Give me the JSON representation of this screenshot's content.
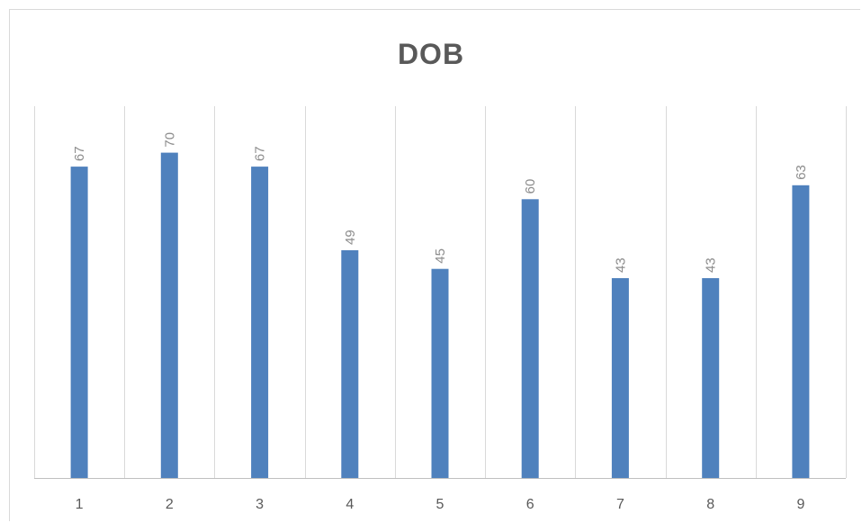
{
  "chart_data": {
    "type": "bar",
    "title": "DOB",
    "xlabel": "",
    "ylabel": "",
    "categories": [
      "1",
      "2",
      "3",
      "4",
      "5",
      "6",
      "7",
      "8",
      "9"
    ],
    "series": [
      {
        "values": [
          67,
          70,
          67,
          49,
          45,
          60,
          43,
          43,
          63
        ]
      }
    ],
    "ylim": [
      0,
      80
    ],
    "grid": "vertical",
    "legend": "none",
    "data_labels": "rotated",
    "colors": {
      "bar": "#4f81bd",
      "grid": "#d9d9d9",
      "axis": "#bfbfbf",
      "tick_text": "#595959",
      "data_label": "#8c8c8c",
      "title": "#595959"
    }
  }
}
